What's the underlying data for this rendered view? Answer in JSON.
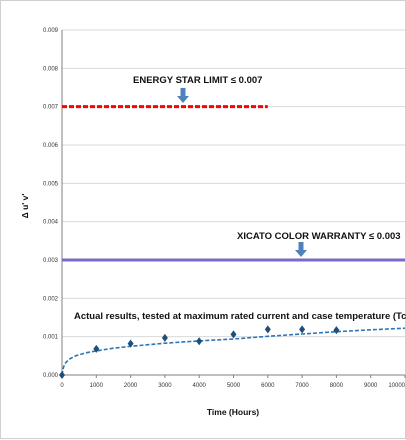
{
  "chart_data": {
    "type": "line",
    "title": "",
    "xlabel": "Time (Hours)",
    "ylabel": "Δ u' v'",
    "xlim": [
      0,
      10000
    ],
    "ylim": [
      0,
      0.009
    ],
    "x_ticks": [
      "0",
      "1000",
      "2000",
      "3000",
      "4000",
      "5000",
      "6000",
      "7000",
      "8000",
      "9000",
      "10000"
    ],
    "y_ticks": [
      "0.000",
      "0.001",
      "0.002",
      "0.003",
      "0.004",
      "0.005",
      "0.006",
      "0.007",
      "0.008",
      "0.009"
    ],
    "grid": "horizontal",
    "series": [
      {
        "name": "",
        "kind": "markers",
        "marker": "diamond",
        "color": "#1f4e79",
        "x": [
          0,
          1000,
          2000,
          3000,
          4000,
          5000,
          6000,
          7000,
          8000
        ],
        "y": [
          0.0,
          0.00068,
          0.00082,
          0.00097,
          0.00088,
          0.00106,
          0.00119,
          0.00119,
          0.00117
        ]
      },
      {
        "name": "",
        "kind": "trendline",
        "style": "dashed",
        "color": "#2e75b6",
        "x": [
          20,
          50,
          100,
          200,
          400,
          700,
          1000,
          1500,
          2000,
          3000,
          4000,
          5000,
          6000,
          7000,
          8000,
          9000,
          10000
        ],
        "y": [
          0.00011,
          0.00022,
          0.00031,
          0.00041,
          0.0005,
          0.00058,
          0.00063,
          0.0007,
          0.00075,
          0.00083,
          0.00089,
          0.00094,
          0.00101,
          0.00107,
          0.00113,
          0.00118,
          0.00122
        ]
      }
    ],
    "reference_lines": [
      {
        "label": "ENERGY STAR LIMIT ≤ 0.007",
        "y": 0.007,
        "x_end": 6000,
        "style": "dashed",
        "color": "#ff0000"
      },
      {
        "label": "XICATO COLOR WARRANTY ≤ 0.003",
        "y": 0.003,
        "x_end": 10000,
        "style": "solid",
        "color": "#7b68c8"
      }
    ],
    "annotation": "Actual results, tested at maximum rated current and case temperature (Tc)",
    "arrow_color": "#4f81bd"
  }
}
